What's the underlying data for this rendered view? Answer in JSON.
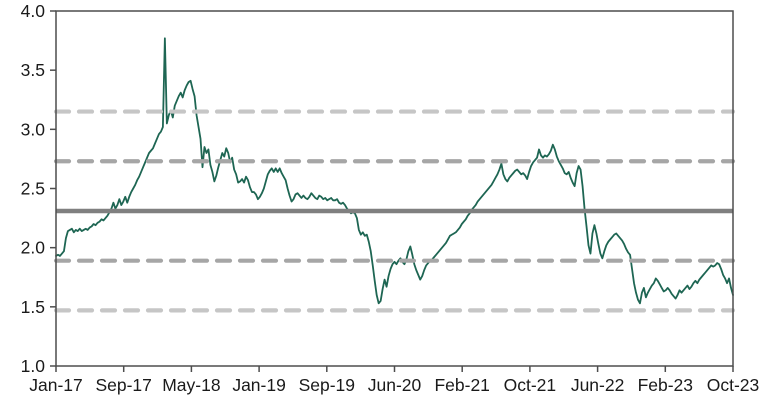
{
  "chart_data": {
    "type": "line",
    "title": "",
    "xlabel": "",
    "ylabel": "",
    "grid": "off",
    "legend": "none",
    "ylim": [
      1.0,
      4.0
    ],
    "y_tick_step": 0.5,
    "y_tick_labels": [
      "4.0",
      "3.5",
      "3.0",
      "2.5",
      "2.0",
      "1.5",
      "1.0"
    ],
    "x_tick_labels": [
      "Jan-17",
      "Sep-17",
      "May-18",
      "Jan-19",
      "Sep-19",
      "Jun-20",
      "Feb-21",
      "Oct-21",
      "Jun-22",
      "Feb-23",
      "Oct-23"
    ],
    "reference_lines": [
      {
        "name": "plus-2-sigma",
        "value": 3.15,
        "style": "dashed",
        "color": "#C6C6C6"
      },
      {
        "name": "plus-1-sigma",
        "value": 2.73,
        "style": "dashed",
        "color": "#A6A6A6"
      },
      {
        "name": "mean",
        "value": 2.31,
        "style": "solid",
        "color": "#808080"
      },
      {
        "name": "minus-1-sigma",
        "value": 1.89,
        "style": "dashed",
        "color": "#A6A6A6"
      },
      {
        "name": "minus-2-sigma",
        "value": 1.47,
        "style": "dashed",
        "color": "#C6C6C6"
      }
    ],
    "series": [
      {
        "name": "series",
        "color": "#1E6653",
        "values": [
          1.93,
          1.94,
          1.93,
          1.95,
          1.97,
          2.08,
          2.14,
          2.15,
          2.16,
          2.13,
          2.15,
          2.14,
          2.16,
          2.14,
          2.15,
          2.16,
          2.15,
          2.17,
          2.18,
          2.2,
          2.19,
          2.21,
          2.22,
          2.24,
          2.23,
          2.25,
          2.27,
          2.3,
          2.33,
          2.38,
          2.33,
          2.36,
          2.41,
          2.36,
          2.39,
          2.43,
          2.38,
          2.43,
          2.47,
          2.5,
          2.53,
          2.57,
          2.6,
          2.64,
          2.68,
          2.72,
          2.76,
          2.8,
          2.82,
          2.84,
          2.88,
          2.92,
          2.96,
          2.98,
          3.02,
          3.77,
          3.05,
          3.12,
          3.16,
          3.1,
          3.2,
          3.24,
          3.28,
          3.31,
          3.27,
          3.33,
          3.37,
          3.4,
          3.41,
          3.34,
          3.28,
          3.12,
          3.02,
          2.92,
          2.68,
          2.85,
          2.8,
          2.83,
          2.7,
          2.64,
          2.56,
          2.61,
          2.68,
          2.74,
          2.8,
          2.77,
          2.84,
          2.8,
          2.72,
          2.76,
          2.66,
          2.62,
          2.55,
          2.56,
          2.58,
          2.55,
          2.6,
          2.57,
          2.51,
          2.47,
          2.47,
          2.45,
          2.41,
          2.43,
          2.46,
          2.5,
          2.56,
          2.62,
          2.65,
          2.67,
          2.64,
          2.67,
          2.64,
          2.67,
          2.63,
          2.6,
          2.57,
          2.5,
          2.44,
          2.39,
          2.41,
          2.45,
          2.46,
          2.44,
          2.42,
          2.44,
          2.42,
          2.41,
          2.43,
          2.46,
          2.44,
          2.42,
          2.41,
          2.44,
          2.43,
          2.41,
          2.42,
          2.4,
          2.41,
          2.42,
          2.4,
          2.4,
          2.41,
          2.38,
          2.37,
          2.38,
          2.36,
          2.33,
          2.31,
          2.29,
          2.3,
          2.29,
          2.25,
          2.15,
          2.11,
          2.13,
          2.1,
          2.11,
          2.05,
          1.97,
          1.85,
          1.72,
          1.6,
          1.53,
          1.55,
          1.65,
          1.73,
          1.67,
          1.76,
          1.82,
          1.86,
          1.88,
          1.86,
          1.89,
          1.91,
          1.88,
          1.86,
          1.9,
          1.97,
          2.01,
          1.94,
          1.86,
          1.81,
          1.77,
          1.73,
          1.76,
          1.81,
          1.85,
          1.87,
          1.89,
          1.9,
          1.92,
          1.94,
          1.96,
          1.98,
          2.0,
          2.02,
          2.04,
          2.07,
          2.1,
          2.11,
          2.12,
          2.13,
          2.15,
          2.17,
          2.2,
          2.22,
          2.24,
          2.27,
          2.29,
          2.32,
          2.34,
          2.36,
          2.39,
          2.41,
          2.43,
          2.45,
          2.47,
          2.49,
          2.51,
          2.53,
          2.56,
          2.59,
          2.62,
          2.66,
          2.71,
          2.62,
          2.58,
          2.56,
          2.59,
          2.61,
          2.63,
          2.65,
          2.66,
          2.64,
          2.62,
          2.63,
          2.61,
          2.58,
          2.64,
          2.69,
          2.72,
          2.74,
          2.76,
          2.83,
          2.78,
          2.76,
          2.78,
          2.77,
          2.79,
          2.82,
          2.87,
          2.83,
          2.77,
          2.73,
          2.7,
          2.67,
          2.63,
          2.62,
          2.64,
          2.59,
          2.55,
          2.52,
          2.63,
          2.69,
          2.66,
          2.52,
          2.33,
          2.18,
          2.02,
          1.95,
          2.12,
          2.19,
          2.12,
          2.03,
          1.95,
          1.91,
          1.97,
          2.02,
          2.05,
          2.07,
          2.09,
          2.11,
          2.12,
          2.1,
          2.08,
          2.06,
          2.03,
          1.99,
          1.96,
          1.94,
          1.82,
          1.7,
          1.62,
          1.56,
          1.53,
          1.62,
          1.66,
          1.58,
          1.62,
          1.65,
          1.68,
          1.7,
          1.74,
          1.72,
          1.69,
          1.66,
          1.63,
          1.64,
          1.66,
          1.64,
          1.61,
          1.59,
          1.57,
          1.6,
          1.64,
          1.62,
          1.64,
          1.66,
          1.68,
          1.65,
          1.67,
          1.7,
          1.72,
          1.7,
          1.73,
          1.75,
          1.77,
          1.79,
          1.81,
          1.83,
          1.85,
          1.84,
          1.85,
          1.87,
          1.86,
          1.82,
          1.77,
          1.74,
          1.7,
          1.74,
          1.66,
          1.6
        ]
      }
    ],
    "colors": {
      "series_green": "#1E6653",
      "mean_line": "#808080",
      "sigma1_dash": "#A6A6A6",
      "sigma2_dash": "#C6C6C6",
      "axis": "#4d4d4d",
      "label_text": "#1a1a1a",
      "background": "#ffffff"
    }
  }
}
